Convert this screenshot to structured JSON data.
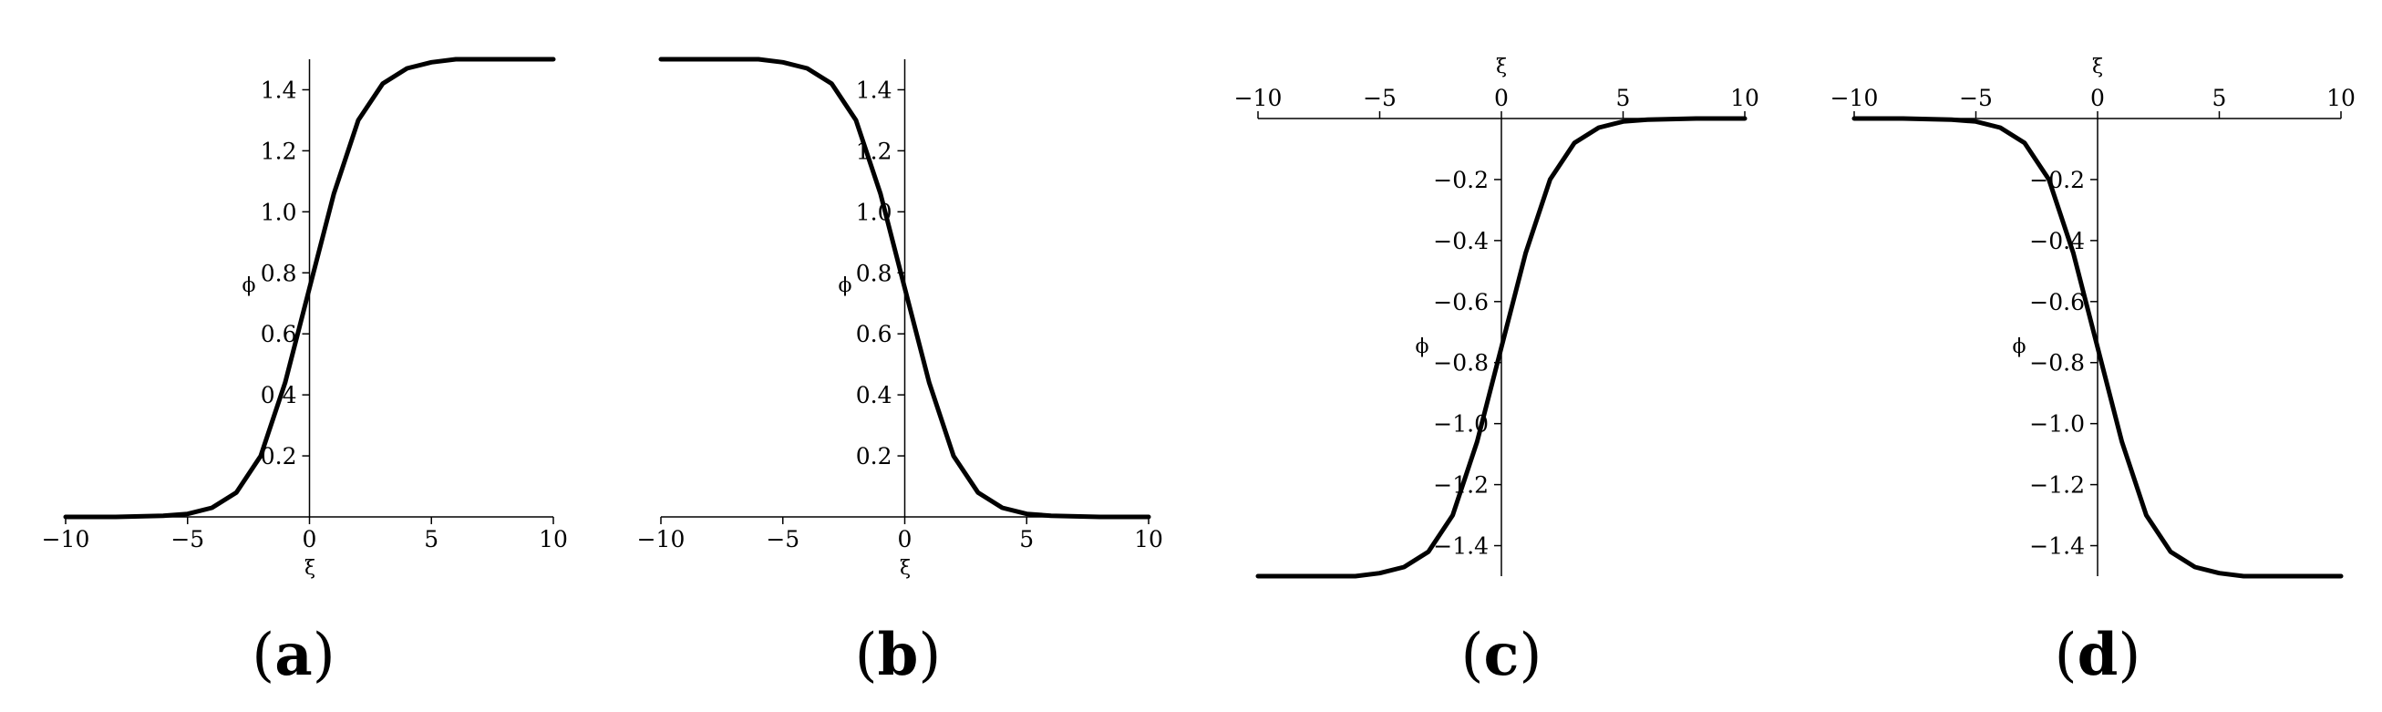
{
  "chart_data": [
    {
      "type": "line",
      "panel_label": "a",
      "xlabel": "ξ",
      "ylabel": "ϕ",
      "xlim": [
        -10,
        10
      ],
      "ylim": [
        0,
        1.5
      ],
      "x_axis_position": "bottom",
      "x_ticks": [
        "−10",
        "−5",
        "0",
        "5",
        "10"
      ],
      "y_ticks": [
        "0.2",
        "0.4",
        "0.6",
        "0.8",
        "1.0",
        "1.2",
        "1.4"
      ],
      "grid": false,
      "series": [
        {
          "x": [
            -10,
            -8,
            -6,
            -5,
            -4,
            -3,
            -2,
            -1,
            0,
            1,
            2,
            3,
            4,
            5,
            6,
            8,
            10
          ],
          "y": [
            0.0,
            0.0,
            0.004,
            0.01,
            0.03,
            0.08,
            0.2,
            0.44,
            0.75,
            1.06,
            1.3,
            1.42,
            1.47,
            1.49,
            1.5,
            1.5,
            1.5
          ]
        }
      ]
    },
    {
      "type": "line",
      "panel_label": "b",
      "xlabel": "ξ",
      "ylabel": "ϕ",
      "xlim": [
        -10,
        10
      ],
      "ylim": [
        0,
        1.5
      ],
      "x_axis_position": "bottom",
      "x_ticks": [
        "−10",
        "−5",
        "0",
        "5",
        "10"
      ],
      "y_ticks": [
        "0.2",
        "0.4",
        "0.6",
        "0.8",
        "1.0",
        "1.2",
        "1.4"
      ],
      "grid": false,
      "series": [
        {
          "x": [
            -10,
            -8,
            -6,
            -5,
            -4,
            -3,
            -2,
            -1,
            0,
            1,
            2,
            3,
            4,
            5,
            6,
            8,
            10
          ],
          "y": [
            1.5,
            1.5,
            1.5,
            1.49,
            1.47,
            1.42,
            1.3,
            1.06,
            0.75,
            0.44,
            0.2,
            0.08,
            0.03,
            0.01,
            0.004,
            0.0,
            0.0
          ]
        }
      ]
    },
    {
      "type": "line",
      "panel_label": "c",
      "xlabel": "ξ",
      "ylabel": "ϕ",
      "xlim": [
        -10,
        10
      ],
      "ylim": [
        -1.5,
        0
      ],
      "x_axis_position": "top",
      "x_ticks": [
        "−10",
        "−5",
        "0",
        "5",
        "10"
      ],
      "y_ticks": [
        "−0.2",
        "−0.4",
        "−0.6",
        "−0.8",
        "−1.0",
        "−1.2",
        "−1.4"
      ],
      "grid": false,
      "series": [
        {
          "x": [
            -10,
            -8,
            -6,
            -5,
            -4,
            -3,
            -2,
            -1,
            0,
            1,
            2,
            3,
            4,
            5,
            6,
            8,
            10
          ],
          "y": [
            -1.5,
            -1.5,
            -1.5,
            -1.49,
            -1.47,
            -1.42,
            -1.3,
            -1.06,
            -0.75,
            -0.44,
            -0.2,
            -0.08,
            -0.03,
            -0.01,
            -0.004,
            0.0,
            0.0
          ]
        }
      ]
    },
    {
      "type": "line",
      "panel_label": "d",
      "xlabel": "ξ",
      "ylabel": "ϕ",
      "xlim": [
        -10,
        10
      ],
      "ylim": [
        -1.5,
        0
      ],
      "x_axis_position": "top",
      "x_ticks": [
        "−10",
        "−5",
        "0",
        "5",
        "10"
      ],
      "y_ticks": [
        "−0.2",
        "−0.4",
        "−0.6",
        "−0.8",
        "−1.0",
        "−1.2",
        "−1.4"
      ],
      "grid": false,
      "series": [
        {
          "x": [
            -10,
            -8,
            -6,
            -5,
            -4,
            -3,
            -2,
            -1,
            0,
            1,
            2,
            3,
            4,
            5,
            6,
            8,
            10
          ],
          "y": [
            0.0,
            0.0,
            -0.004,
            -0.01,
            -0.03,
            -0.08,
            -0.2,
            -0.44,
            -0.75,
            -1.06,
            -1.3,
            -1.42,
            -1.47,
            -1.49,
            -1.5,
            -1.5,
            -1.5
          ]
        }
      ]
    }
  ]
}
